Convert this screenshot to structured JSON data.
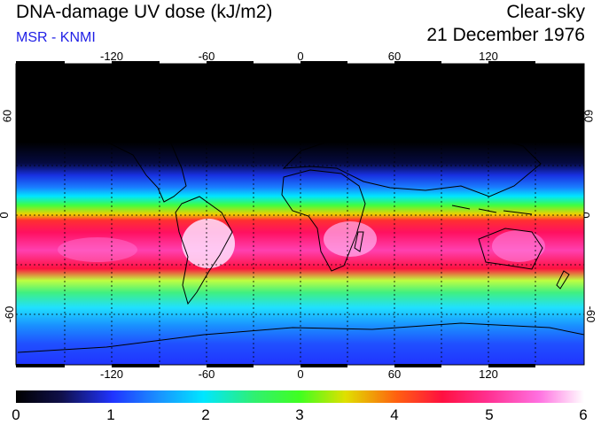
{
  "header": {
    "title": "DNA-damage UV dose (kJ/m2)",
    "source": "MSR - KNMI",
    "mode": "Clear-sky",
    "date": "21 December 1976"
  },
  "map": {
    "lon_labels": [
      "-120",
      "-60",
      "0",
      "60",
      "120"
    ],
    "lat_labels": [
      "60",
      "0",
      "-60"
    ],
    "gridlines": "dotted",
    "projection": "equirectangular"
  },
  "colorbar": {
    "tick_labels": [
      "0",
      "1",
      "2",
      "3",
      "4",
      "5",
      "6"
    ],
    "min": 0,
    "max": 6,
    "unit": "kJ/m2"
  },
  "colors": {
    "source_text": "#1f1fe6",
    "night": "#000000",
    "blue": "#2034ff",
    "cyan": "#00e6ff",
    "green": "#4cf04c",
    "red": "#ff1040",
    "pink": "#ff40c8",
    "white": "#fff0ff"
  }
}
